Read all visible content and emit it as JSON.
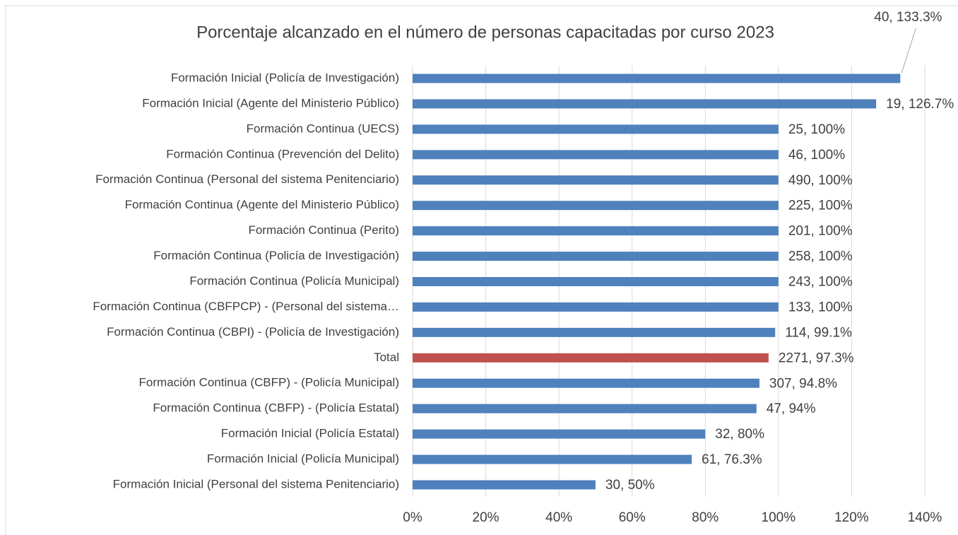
{
  "chart_data": {
    "type": "barh",
    "title": "Porcentaje alcanzado en el número de personas capacitadas por curso 2023",
    "categories": [
      "Formación Inicial (Policía de Investigación)",
      "Formación Inicial (Agente del Ministerio Público)",
      "Formación Continua (UECS)",
      "Formación Continua (Prevención del Delito)",
      "Formación Continua (Personal del sistema Penitenciario)",
      "Formación Continua (Agente del Ministerio Público)",
      "Formación Continua (Perito)",
      "Formación Continua (Policía de Investigación)",
      "Formación Continua (Policía Municipal)",
      "Formación Continua (CBFPCP) - (Personal del sistema…",
      "Formación Continua (CBPI) - (Policía de Investigación)",
      "Total",
      "Formación Continua (CBFP) - (Policía Municipal)",
      "Formación Continua (CBFP) - (Policía Estatal)",
      "Formación Inicial (Policía Estatal)",
      "Formación Inicial (Policía Municipal)",
      "Formación Inicial (Personal del sistema Penitenciario)"
    ],
    "values": [
      133.3,
      126.7,
      100,
      100,
      100,
      100,
      100,
      100,
      100,
      100,
      99.1,
      97.3,
      94.8,
      94,
      80,
      76.3,
      50
    ],
    "value_labels": [
      "40, 133.3%",
      "19, 126.7%",
      "25, 100%",
      "46, 100%",
      "490, 100%",
      "225, 100%",
      "201, 100%",
      "258, 100%",
      "243, 100%",
      "133, 100%",
      "114, 99.1%",
      "2271, 97.3%",
      "307, 94.8%",
      "47, 94%",
      "32, 80%",
      "61, 76.3%",
      "30, 50%"
    ],
    "colors": [
      "#4f81bd",
      "#4f81bd",
      "#4f81bd",
      "#4f81bd",
      "#4f81bd",
      "#4f81bd",
      "#4f81bd",
      "#4f81bd",
      "#4f81bd",
      "#4f81bd",
      "#4f81bd",
      "#c0504d",
      "#4f81bd",
      "#4f81bd",
      "#4f81bd",
      "#4f81bd",
      "#4f81bd"
    ],
    "xlim": [
      0,
      140
    ],
    "xticks": [
      {
        "value": 0,
        "label": "0%"
      },
      {
        "value": 20,
        "label": "20%"
      },
      {
        "value": 40,
        "label": "40%"
      },
      {
        "value": 60,
        "label": "60%"
      },
      {
        "value": 80,
        "label": "80%"
      },
      {
        "value": 100,
        "label": "100%"
      },
      {
        "value": 120,
        "label": "120%"
      },
      {
        "value": 140,
        "label": "140%"
      }
    ],
    "grid": true
  }
}
